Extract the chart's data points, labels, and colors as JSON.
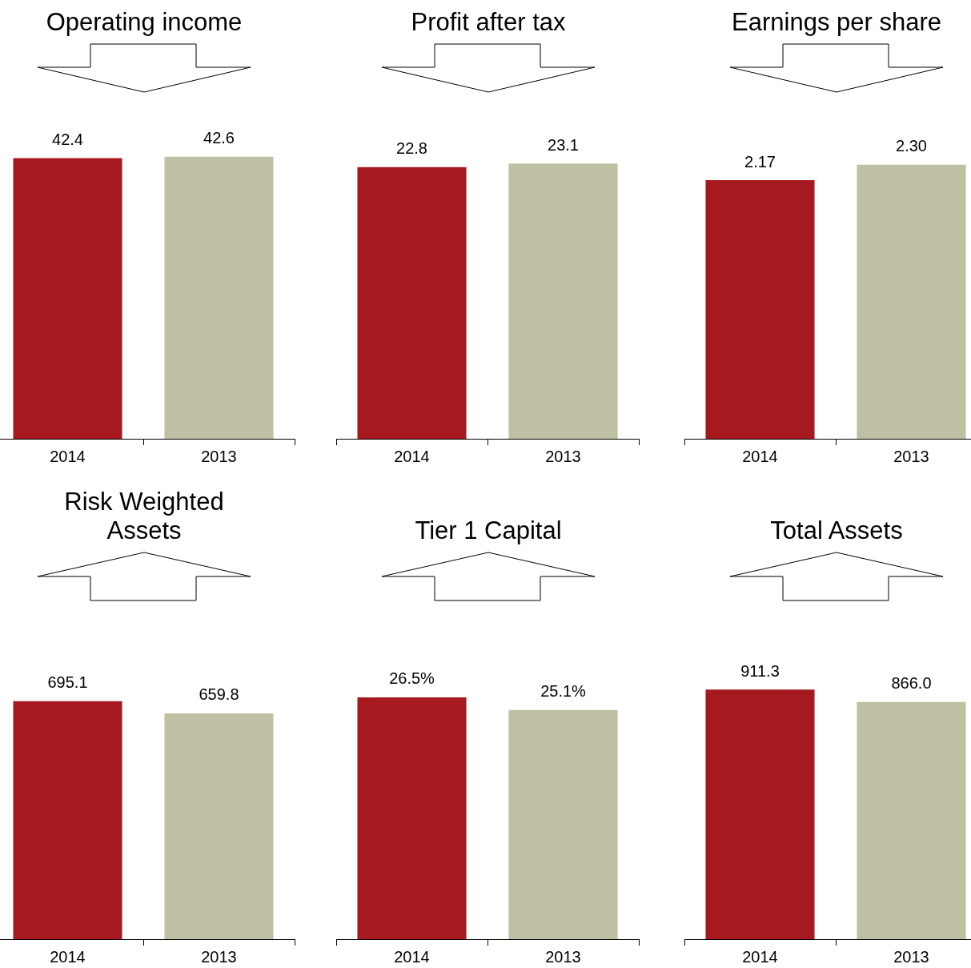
{
  "chart_data": [
    {
      "type": "bar",
      "title": "Operating income",
      "categories": [
        "2014",
        "2013"
      ],
      "values": [
        42.4,
        42.6
      ],
      "colors": [
        "#a6191e",
        "#bfbfa3"
      ],
      "value_labels": [
        "42.4",
        "42.6"
      ],
      "tick_labels": "x",
      "grid": false,
      "legend": false
    },
    {
      "type": "bar",
      "title": "Profit after tax",
      "categories": [
        "2014",
        "2013"
      ],
      "values": [
        22.8,
        23.1
      ],
      "colors": [
        "#a6191e",
        "#bfbfa3"
      ],
      "value_labels": [
        "22.8",
        "23.1"
      ],
      "tick_labels": "x",
      "grid": false,
      "legend": false
    },
    {
      "type": "bar",
      "title": "Earnings per share",
      "categories": [
        "2014",
        "2013"
      ],
      "values": [
        2.17,
        2.3
      ],
      "colors": [
        "#a6191e",
        "#bfbfa3"
      ],
      "value_labels": [
        "2.17",
        "2.30"
      ],
      "tick_labels": "x",
      "grid": false,
      "legend": false
    },
    {
      "type": "bar",
      "title": "Risk Weighted\nAssets",
      "categories": [
        "2014",
        "2013"
      ],
      "values": [
        695.1,
        659.8
      ],
      "colors": [
        "#a6191e",
        "#bfbfa3"
      ],
      "value_labels": [
        "695.1",
        "659.8"
      ],
      "tick_labels": "x",
      "grid": false,
      "legend": false
    },
    {
      "type": "bar",
      "title": "Tier 1 Capital",
      "categories": [
        "2014",
        "2013"
      ],
      "values": [
        26.5,
        25.1
      ],
      "colors": [
        "#a6191e",
        "#bfbfa3"
      ],
      "value_labels": [
        "26.5%",
        "25.1%"
      ],
      "tick_labels": "x",
      "grid": false,
      "legend": false
    },
    {
      "type": "bar",
      "title": "Total Assets",
      "categories": [
        "2014",
        "2013"
      ],
      "values": [
        911.3,
        866.0
      ],
      "colors": [
        "#a6191e",
        "#bfbfa3"
      ],
      "value_labels": [
        "911.3",
        "866.0"
      ],
      "tick_labels": "x",
      "grid": false,
      "legend": false
    }
  ]
}
